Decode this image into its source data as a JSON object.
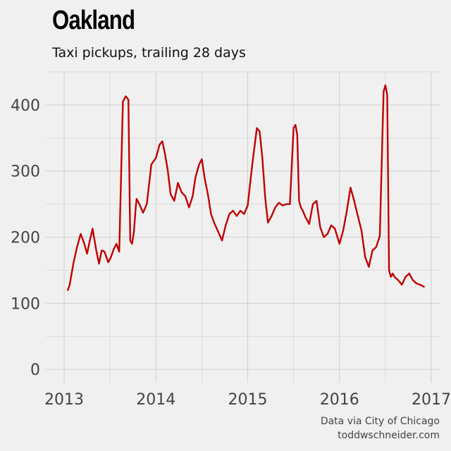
{
  "chart_data": {
    "type": "line",
    "title": "Oakland",
    "subtitle": "Taxi pickups, trailing 28 days",
    "xlabel": "",
    "ylabel": "",
    "xlim": [
      2012.8,
      2017.1
    ],
    "ylim": [
      -20,
      450
    ],
    "x_ticks": [
      2013,
      2014,
      2015,
      2016,
      2017
    ],
    "x_tick_labels": [
      "2013",
      "2014",
      "2015",
      "2016",
      "2017"
    ],
    "y_ticks": [
      0,
      100,
      200,
      300,
      400
    ],
    "y_tick_labels": [
      "0",
      "100",
      "200",
      "300",
      "400"
    ],
    "grid": true,
    "series": [
      {
        "color": "#c00000",
        "x": [
          2013.04,
          2013.06,
          2013.1,
          2013.14,
          2013.18,
          2013.22,
          2013.25,
          2013.28,
          2013.31,
          2013.35,
          2013.38,
          2013.41,
          2013.44,
          2013.48,
          2013.51,
          2013.54,
          2013.57,
          2013.6,
          2013.64,
          2013.67,
          2013.7,
          2013.72,
          2013.74,
          2013.76,
          2013.78,
          2013.79,
          2013.82,
          2013.86,
          2013.9,
          2013.95,
          2014.0,
          2014.04,
          2014.07,
          2014.1,
          2014.13,
          2014.16,
          2014.2,
          2014.24,
          2014.28,
          2014.32,
          2014.36,
          2014.4,
          2014.43,
          2014.47,
          2014.5,
          2014.53,
          2014.57,
          2014.6,
          2014.64,
          2014.68,
          2014.72,
          2014.76,
          2014.8,
          2014.84,
          2014.88,
          2014.92,
          2014.96,
          2015.0,
          2015.05,
          2015.1,
          2015.13,
          2015.16,
          2015.19,
          2015.22,
          2015.26,
          2015.3,
          2015.34,
          2015.38,
          2015.42,
          2015.46,
          2015.5,
          2015.52,
          2015.54,
          2015.56,
          2015.58,
          2015.6,
          2015.63,
          2015.67,
          2015.71,
          2015.75,
          2015.79,
          2015.83,
          2015.87,
          2015.91,
          2015.95,
          2016.0,
          2016.04,
          2016.08,
          2016.12,
          2016.16,
          2016.2,
          2016.24,
          2016.28,
          2016.32,
          2016.36,
          2016.4,
          2016.44,
          2016.48,
          2016.5,
          2016.52,
          2016.54,
          2016.56,
          2016.58,
          2016.6,
          2016.64,
          2016.68,
          2016.72,
          2016.76,
          2016.8,
          2016.84,
          2016.88,
          2016.92
        ],
        "y": [
          120,
          128,
          160,
          185,
          205,
          190,
          175,
          195,
          213,
          180,
          160,
          180,
          178,
          162,
          170,
          182,
          190,
          178,
          405,
          413,
          408,
          195,
          190,
          208,
          245,
          258,
          250,
          237,
          250,
          310,
          320,
          340,
          345,
          325,
          300,
          265,
          255,
          282,
          268,
          262,
          245,
          262,
          290,
          310,
          318,
          290,
          262,
          235,
          220,
          208,
          195,
          218,
          235,
          240,
          232,
          240,
          235,
          248,
          310,
          365,
          360,
          320,
          260,
          222,
          232,
          245,
          252,
          248,
          250,
          250,
          365,
          370,
          355,
          255,
          245,
          240,
          230,
          220,
          250,
          255,
          215,
          200,
          205,
          218,
          213,
          190,
          210,
          240,
          275,
          255,
          232,
          210,
          170,
          155,
          180,
          185,
          202,
          420,
          430,
          415,
          150,
          140,
          145,
          140,
          135,
          128,
          140,
          145,
          135,
          130,
          128,
          125
        ]
      }
    ]
  },
  "source": {
    "line1": "Data via City of Chicago",
    "line2": "toddwschneider.com"
  }
}
